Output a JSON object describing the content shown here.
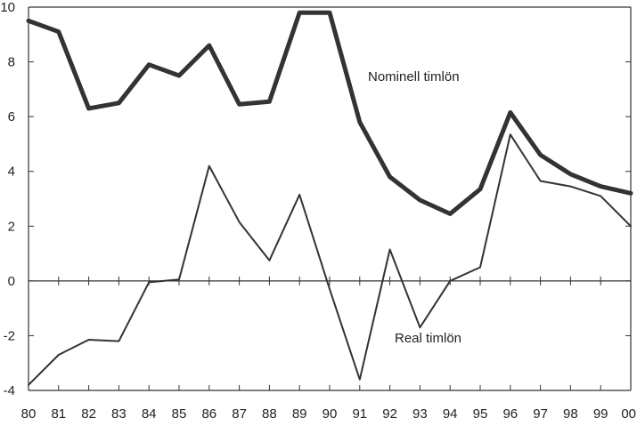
{
  "chart_data": {
    "type": "line",
    "title": "",
    "xlabel": "",
    "ylabel": "",
    "categories": [
      "80",
      "81",
      "82",
      "83",
      "84",
      "85",
      "86",
      "87",
      "88",
      "89",
      "90",
      "91",
      "92",
      "93",
      "94",
      "95",
      "96",
      "97",
      "98",
      "99",
      "00"
    ],
    "ylim": [
      -4,
      10
    ],
    "yticks": [
      -4,
      -2,
      0,
      2,
      4,
      6,
      8,
      10
    ],
    "grid": false,
    "colors": {
      "line": "#333333",
      "axis": "#333333"
    },
    "series": [
      {
        "name": "Nominell timlön",
        "values": [
          9.5,
          9.1,
          6.3,
          6.5,
          7.9,
          7.5,
          8.6,
          6.45,
          6.55,
          9.8,
          9.8,
          5.8,
          3.8,
          2.95,
          2.45,
          3.35,
          6.15,
          4.6,
          3.9,
          3.45,
          3.2
        ]
      },
      {
        "name": "Real timlön",
        "values": [
          -3.8,
          -2.7,
          -2.15,
          -2.2,
          -0.05,
          0.05,
          4.2,
          2.15,
          0.75,
          3.15,
          -0.3,
          -3.6,
          1.15,
          -1.7,
          0.0,
          0.5,
          5.35,
          3.65,
          3.45,
          3.1,
          2.0
        ]
      }
    ]
  }
}
